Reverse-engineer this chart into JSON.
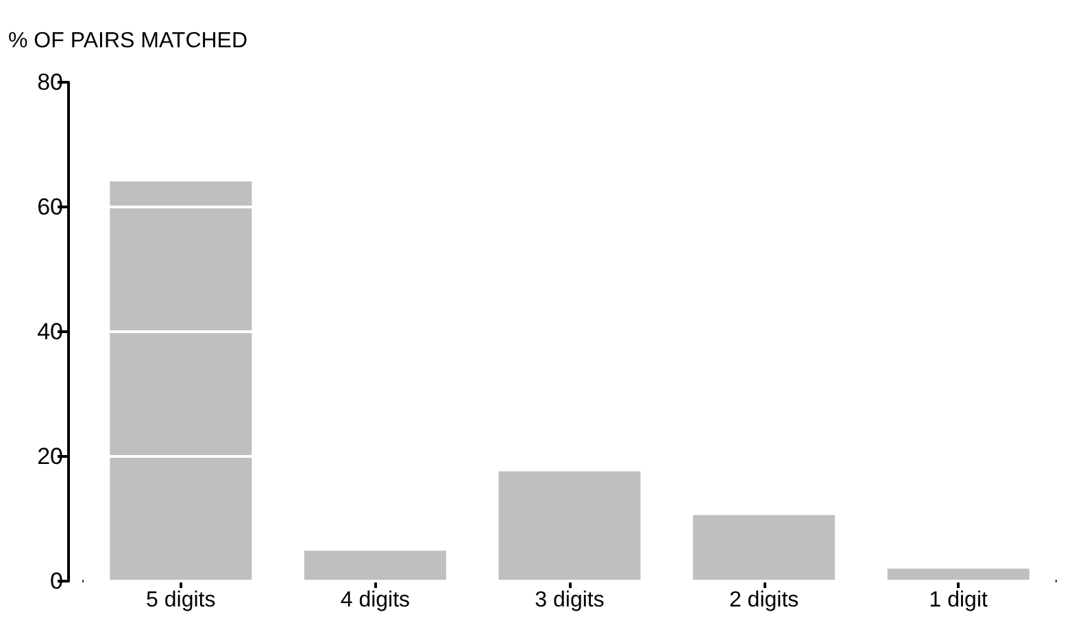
{
  "chart_data": {
    "type": "bar",
    "ylabel": "% OF PAIRS MATCHED",
    "categories": [
      "5 digits",
      "4 digits",
      "3 digits",
      "2 digits",
      "1 digit"
    ],
    "values": [
      64.1,
      4.9,
      17.6,
      10.6,
      2.0
    ],
    "color": "#bfbfbf",
    "ylim": [
      0,
      80
    ],
    "yticks": [
      0,
      20,
      40,
      60,
      80
    ],
    "grid": "y"
  }
}
